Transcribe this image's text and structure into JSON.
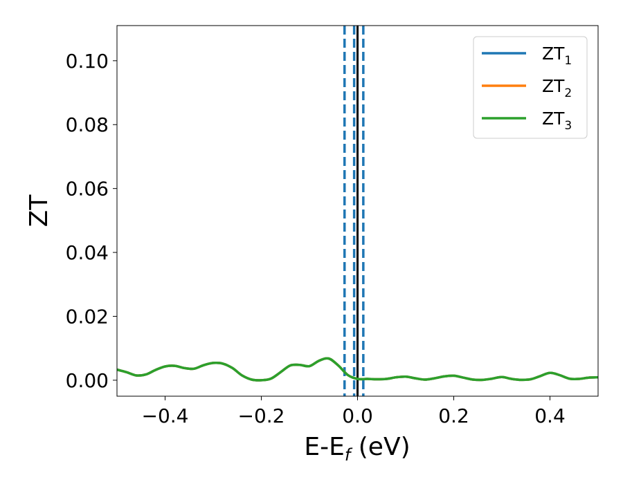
{
  "chart_data": {
    "type": "line",
    "title": "",
    "xlabel": "E-E",
    "xlabel_sub": "f",
    "xlabel_unit": " (eV)",
    "ylabel": "ZT",
    "xlim": [
      -0.5,
      0.5
    ],
    "ylim": [
      -0.005,
      0.111
    ],
    "x_ticks": [
      -0.4,
      -0.2,
      0.0,
      0.2,
      0.4
    ],
    "x_tick_labels": [
      "−0.4",
      "−0.2",
      "0.0",
      "0.2",
      "0.4"
    ],
    "y_ticks": [
      0.0,
      0.02,
      0.04,
      0.06,
      0.08,
      0.1
    ],
    "y_tick_labels": [
      "0.00",
      "0.02",
      "0.04",
      "0.06",
      "0.08",
      "0.10"
    ],
    "grid": false,
    "legend_position": "top-right",
    "x": [
      -0.5,
      -0.48,
      -0.46,
      -0.44,
      -0.42,
      -0.4,
      -0.38,
      -0.36,
      -0.34,
      -0.32,
      -0.3,
      -0.28,
      -0.26,
      -0.24,
      -0.22,
      -0.2,
      -0.18,
      -0.16,
      -0.14,
      -0.12,
      -0.1,
      -0.08,
      -0.06,
      -0.04,
      -0.02,
      0.0,
      0.02,
      0.04,
      0.06,
      0.08,
      0.1,
      0.12,
      0.14,
      0.16,
      0.18,
      0.2,
      0.22,
      0.24,
      0.26,
      0.28,
      0.3,
      0.32,
      0.34,
      0.36,
      0.38,
      0.4,
      0.42,
      0.44,
      0.46,
      0.48,
      0.5
    ],
    "series": [
      {
        "name": "ZT",
        "name_sub": "1",
        "color": "#1f77b4",
        "values": [
          0.0033,
          0.0025,
          0.0015,
          0.0018,
          0.0032,
          0.0043,
          0.0045,
          0.0038,
          0.0036,
          0.0047,
          0.0054,
          0.0052,
          0.0038,
          0.0015,
          0.0002,
          0.0,
          0.0005,
          0.0025,
          0.0046,
          0.0048,
          0.0044,
          0.0061,
          0.0068,
          0.0046,
          0.0016,
          0.0004,
          0.0004,
          0.0003,
          0.0004,
          0.0009,
          0.0011,
          0.0006,
          0.0002,
          0.0006,
          0.0012,
          0.0014,
          0.0008,
          0.0002,
          0.0001,
          0.0005,
          0.001,
          0.0004,
          0.0001,
          0.0003,
          0.0013,
          0.0023,
          0.0016,
          0.0005,
          0.0004,
          0.0008,
          0.0009
        ]
      },
      {
        "name": "ZT",
        "name_sub": "2",
        "color": "#ff7f0e",
        "values": [
          0.0033,
          0.0025,
          0.0015,
          0.0018,
          0.0032,
          0.0043,
          0.0045,
          0.0038,
          0.0036,
          0.0047,
          0.0054,
          0.0052,
          0.0038,
          0.0015,
          0.0002,
          0.0,
          0.0005,
          0.0025,
          0.0046,
          0.0048,
          0.0044,
          0.0061,
          0.0068,
          0.0046,
          0.0016,
          0.0004,
          0.0004,
          0.0003,
          0.0004,
          0.0009,
          0.0011,
          0.0006,
          0.0002,
          0.0006,
          0.0012,
          0.0014,
          0.0008,
          0.0002,
          0.0001,
          0.0005,
          0.001,
          0.0004,
          0.0001,
          0.0003,
          0.0013,
          0.0023,
          0.0016,
          0.0005,
          0.0004,
          0.0008,
          0.0009
        ]
      },
      {
        "name": "ZT",
        "name_sub": "3",
        "color": "#2ca02c",
        "values": [
          0.0033,
          0.0025,
          0.0015,
          0.0018,
          0.0032,
          0.0043,
          0.0045,
          0.0038,
          0.0036,
          0.0047,
          0.0054,
          0.0052,
          0.0038,
          0.0015,
          0.0002,
          0.0,
          0.0005,
          0.0025,
          0.0046,
          0.0048,
          0.0044,
          0.0061,
          0.0068,
          0.0046,
          0.0016,
          0.0004,
          0.0004,
          0.0003,
          0.0004,
          0.0009,
          0.0011,
          0.0006,
          0.0002,
          0.0006,
          0.0012,
          0.0014,
          0.0008,
          0.0002,
          0.0001,
          0.0005,
          0.001,
          0.0004,
          0.0001,
          0.0003,
          0.0013,
          0.0023,
          0.0016,
          0.0005,
          0.0004,
          0.0008,
          0.0009
        ]
      }
    ],
    "vlines": [
      {
        "x": -0.027,
        "style": "dashed",
        "color": "#1f77b4"
      },
      {
        "x": -0.007,
        "style": "dashed",
        "color": "#1f77b4"
      },
      {
        "x": 0.012,
        "style": "dashed",
        "color": "#1f77b4"
      },
      {
        "x": 0.0,
        "style": "solid",
        "color": "#000000"
      }
    ]
  }
}
